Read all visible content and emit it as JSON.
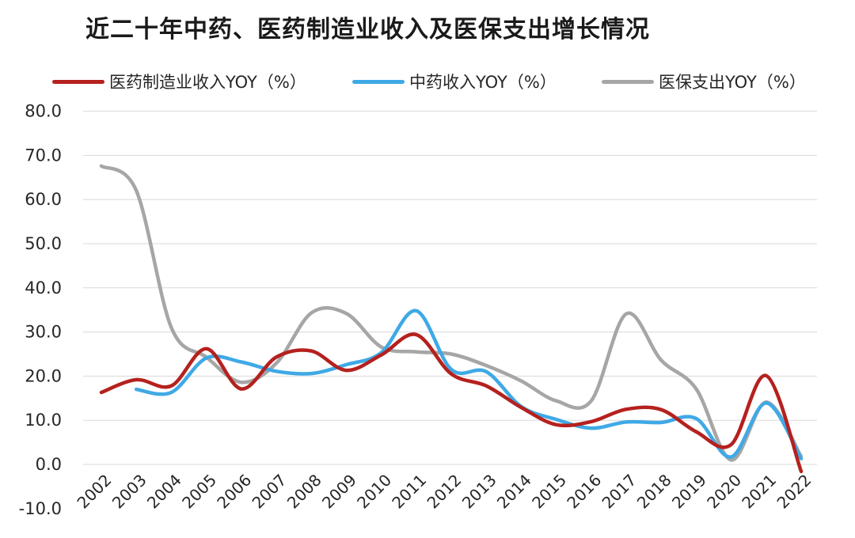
{
  "chart_data": {
    "type": "line",
    "title": "近二十年中药、医药制造业收入及医保支出增长情况",
    "xlabel": "",
    "ylabel": "",
    "ylim": [
      -10,
      80
    ],
    "yticks": [
      -10,
      0,
      10,
      20,
      30,
      40,
      50,
      60,
      70,
      80
    ],
    "ytick_labels": [
      "-10.0",
      "0.0",
      "10.0",
      "20.0",
      "30.0",
      "40.0",
      "50.0",
      "60.0",
      "70.0",
      "80.0"
    ],
    "grid": true,
    "legend_position": "top",
    "categories": [
      "2002",
      "2003",
      "2004",
      "2005",
      "2006",
      "2007",
      "2008",
      "2009",
      "2010",
      "2011",
      "2012",
      "2013",
      "2014",
      "2015",
      "2016",
      "2017",
      "2018",
      "2019",
      "2020",
      "2021",
      "2022"
    ],
    "series": [
      {
        "name": "医药制造业收入YOY（%）",
        "color": "#b5211e",
        "values": [
          16.3,
          19.2,
          17.8,
          26.2,
          17.1,
          24.3,
          25.7,
          21.3,
          24.8,
          29.4,
          20.5,
          17.8,
          12.9,
          9.0,
          9.7,
          12.5,
          12.4,
          7.4,
          4.5,
          20.1,
          -1.6
        ]
      },
      {
        "name": "中药收入YOY（%）",
        "color": "#3fa9e6",
        "values": [
          null,
          17.0,
          16.3,
          24.1,
          23.2,
          21.1,
          20.6,
          22.6,
          25.3,
          34.8,
          21.5,
          21.0,
          13.1,
          10.2,
          8.2,
          9.6,
          9.5,
          10.4,
          1.7,
          13.9,
          1.3
        ]
      },
      {
        "name": "医保支出YOY（%）",
        "color": "#a6a6a6",
        "values": [
          67.6,
          62.0,
          31.0,
          24.3,
          18.6,
          22.9,
          34.3,
          34.2,
          26.6,
          25.5,
          25.0,
          22.4,
          18.9,
          14.4,
          14.4,
          34.1,
          23.6,
          17.1,
          1.0,
          14.1,
          1.8
        ]
      }
    ]
  }
}
